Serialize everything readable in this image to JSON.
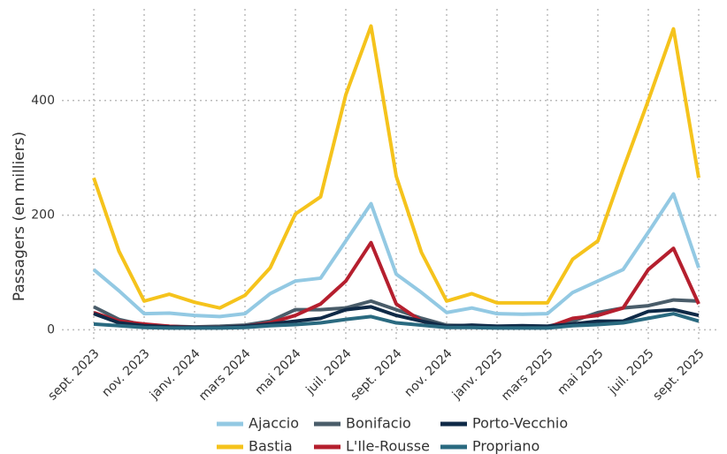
{
  "chart_data": {
    "type": "line",
    "y_label": "Passagers (en milliers)",
    "categories": [
      "sept. 2023",
      null,
      "nov. 2023",
      null,
      "janv. 2024",
      null,
      "mars 2024",
      null,
      "mai 2024",
      null,
      "juil. 2024",
      null,
      "sept. 2024",
      null,
      "nov. 2024",
      null,
      "janv. 2025",
      null,
      "mars 2025",
      null,
      "mai 2025",
      null,
      "juil. 2025",
      null,
      "sept. 2025"
    ],
    "series": [
      {
        "name": "Ajaccio",
        "color": "#93c9e3",
        "values": [
          105,
          68,
          28,
          29,
          25,
          23,
          28,
          63,
          85,
          90,
          155,
          220,
          97,
          65,
          30,
          38,
          28,
          27,
          28,
          65,
          85,
          105,
          170,
          237,
          108
        ]
      },
      {
        "name": "Bastia",
        "color": "#f5c31c",
        "values": [
          265,
          137,
          50,
          62,
          48,
          38,
          60,
          108,
          202,
          232,
          410,
          530,
          268,
          135,
          50,
          63,
          47,
          47,
          47,
          123,
          155,
          280,
          400,
          525,
          265
        ]
      },
      {
        "name": "Bonifacio",
        "color": "#4a5d6a",
        "values": [
          40,
          18,
          8,
          6,
          5,
          6,
          8,
          15,
          35,
          35,
          38,
          50,
          35,
          20,
          8,
          7,
          6,
          6,
          6,
          15,
          30,
          38,
          42,
          52,
          50
        ]
      },
      {
        "name": "L'Ile-Rousse",
        "color": "#b51f2e",
        "values": [
          30,
          15,
          10,
          6,
          4,
          4,
          6,
          12,
          25,
          45,
          85,
          152,
          45,
          15,
          5,
          5,
          4,
          4,
          4,
          20,
          25,
          38,
          105,
          142,
          45
        ]
      },
      {
        "name": "Porto-Vecchio",
        "color": "#0f2a47",
        "values": [
          28,
          12,
          7,
          5,
          4,
          4,
          6,
          10,
          15,
          20,
          35,
          40,
          25,
          15,
          6,
          8,
          6,
          7,
          6,
          10,
          15,
          15,
          32,
          35,
          25
        ]
      },
      {
        "name": "Propriano",
        "color": "#2a6a80",
        "values": [
          10,
          7,
          4,
          3,
          3,
          3,
          4,
          7,
          9,
          12,
          18,
          23,
          12,
          8,
          4,
          4,
          3,
          3,
          3,
          7,
          9,
          12,
          20,
          28,
          15
        ]
      }
    ],
    "ylim": [
      -18,
      560
    ],
    "yticks": [
      0,
      200,
      400
    ],
    "grid": true
  }
}
